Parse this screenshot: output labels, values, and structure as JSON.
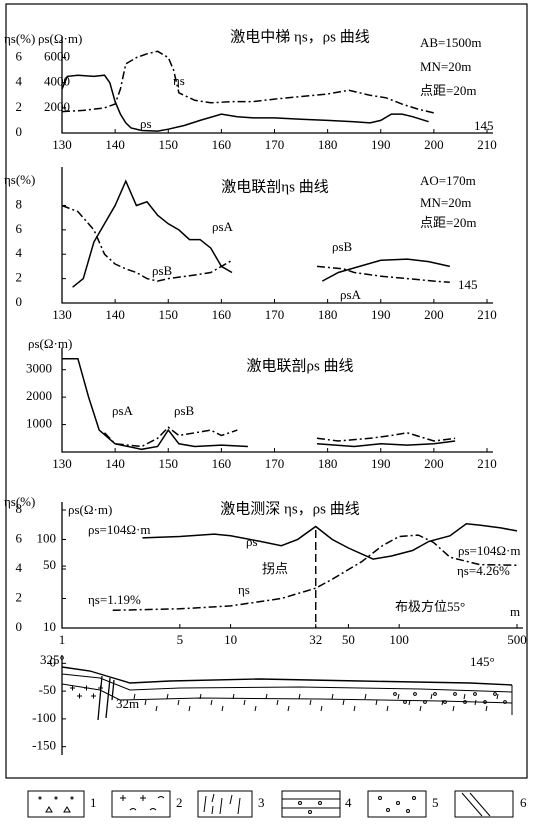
{
  "chart_data": [
    {
      "type": "line",
      "title": "激电中梯 ηs，ρs 曲线",
      "y_label": "ηs(%)",
      "y2_label": "ρs(Ω·m)",
      "xlim": [
        130,
        210
      ],
      "xticks": [
        130,
        140,
        150,
        160,
        170,
        180,
        190,
        200,
        210
      ],
      "ylim": [
        0,
        7
      ],
      "yticks": [
        0,
        2,
        4,
        6
      ],
      "y2lim": [
        0,
        7000
      ],
      "y2ticks": [
        2000,
        4000,
        6000
      ],
      "annotations": [
        "AB=1500m",
        "MN=20m",
        "点距=20m",
        "145"
      ],
      "series": [
        {
          "name": "ρs",
          "color": "#000000",
          "style": "solid",
          "axis": "y2",
          "x": [
            130,
            131,
            133,
            136,
            138,
            139,
            140,
            141,
            142,
            143,
            145,
            148,
            150,
            153,
            156,
            160,
            163,
            166,
            170,
            175,
            180,
            185,
            188,
            190,
            192,
            194,
            196,
            199
          ],
          "values": [
            3500,
            4500,
            4600,
            4500,
            4600,
            4000,
            2500,
            1500,
            800,
            400,
            200,
            150,
            300,
            600,
            1000,
            1500,
            1300,
            1200,
            1200,
            1100,
            1000,
            900,
            800,
            1000,
            1500,
            1500,
            1300,
            900
          ]
        },
        {
          "name": "ηs",
          "color": "#000000",
          "style": "dashdot",
          "x": [
            130,
            134,
            138,
            140,
            141,
            142,
            144,
            146,
            148,
            150,
            151,
            152,
            155,
            158,
            162,
            166,
            170,
            175,
            180,
            184,
            188,
            191,
            194,
            197,
            200
          ],
          "values": [
            1.7,
            1.8,
            2.0,
            2.3,
            3.5,
            5.5,
            6.0,
            6.3,
            6.5,
            6.0,
            5.0,
            3.2,
            2.6,
            2.4,
            2.5,
            2.5,
            2.7,
            2.9,
            3.1,
            3.4,
            3.0,
            2.8,
            2.3,
            1.9,
            1.6
          ]
        }
      ]
    },
    {
      "type": "line",
      "title": "激电联剖ηs 曲线",
      "y_label": "ηs(%)",
      "xlim": [
        130,
        210
      ],
      "xticks": [
        130,
        140,
        150,
        160,
        170,
        180,
        190,
        200,
        210
      ],
      "ylim": [
        0,
        10.5
      ],
      "yticks": [
        0,
        2,
        4,
        6,
        8
      ],
      "annotations": [
        "AO=170m",
        "MN=20m",
        "点距=20m",
        "145"
      ],
      "series": [
        {
          "name": "ρsA",
          "color": "#000000",
          "style": "solid",
          "x": [
            132,
            134,
            136,
            138,
            140,
            142,
            144,
            146,
            148,
            150,
            152,
            154,
            156,
            158,
            160,
            162,
            null,
            179,
            182,
            186,
            190,
            195,
            199,
            203
          ],
          "values": [
            1.3,
            2.0,
            5.0,
            6.5,
            8.0,
            10.0,
            8.0,
            8.3,
            7.2,
            6.5,
            6.0,
            5.2,
            5.2,
            4.5,
            3.0,
            2.5,
            null,
            1.8,
            2.5,
            3.0,
            3.5,
            3.6,
            3.4,
            3.0
          ]
        },
        {
          "name": "ρsB",
          "color": "#000000",
          "style": "dashdot",
          "x": [
            130,
            133,
            136,
            138,
            140,
            142,
            144,
            146,
            148,
            150,
            155,
            158,
            162,
            null,
            178,
            183,
            185,
            190,
            195,
            200,
            203
          ],
          "values": [
            8.0,
            7.5,
            6.0,
            4.0,
            3.2,
            2.8,
            2.5,
            2.0,
            1.8,
            2.0,
            2.3,
            2.5,
            3.5,
            null,
            3.0,
            2.8,
            2.5,
            2.2,
            2.0,
            1.8,
            1.7
          ]
        }
      ]
    },
    {
      "type": "line",
      "title": "激电联剖ρs 曲线",
      "y_label": "ρs(Ω·m)",
      "xlim": [
        130,
        210
      ],
      "xticks": [
        130,
        140,
        150,
        160,
        170,
        180,
        190,
        200,
        210
      ],
      "ylim": [
        0,
        3500
      ],
      "yticks": [
        1000,
        2000,
        3000
      ],
      "annotations": [],
      "series": [
        {
          "name": "ρsA",
          "color": "#000000",
          "style": "solid",
          "x": [
            130,
            133,
            135,
            137,
            140,
            145,
            148,
            150,
            152,
            155,
            160,
            165,
            null,
            178,
            185,
            190,
            195,
            200,
            204
          ],
          "values": [
            3400,
            3400,
            2000,
            800,
            300,
            100,
            200,
            800,
            300,
            200,
            250,
            200,
            null,
            300,
            200,
            300,
            250,
            300,
            400
          ]
        },
        {
          "name": "ρsB",
          "color": "#000000",
          "style": "dashdot",
          "x": [
            138,
            140,
            145,
            148,
            150,
            152,
            155,
            158,
            160,
            163,
            null,
            178,
            182,
            188,
            192,
            195,
            200,
            204
          ],
          "values": [
            700,
            300,
            200,
            500,
            900,
            600,
            700,
            800,
            600,
            800,
            null,
            500,
            400,
            500,
            600,
            700,
            400,
            500
          ]
        }
      ]
    },
    {
      "type": "line",
      "title": "激电测深 ηs，ρs 曲线",
      "y_label": "ηs(%)",
      "y2_label": "ρs(Ω·m)",
      "x_label": "m",
      "xlim": [
        1,
        500
      ],
      "xlog": true,
      "xticks": [
        1,
        5,
        10,
        32,
        50,
        100,
        500
      ],
      "ylim": [
        0,
        8
      ],
      "yticks": [
        0,
        2,
        4,
        6,
        8
      ],
      "y2lim": [
        10,
        215
      ],
      "y2log": true,
      "y2ticks": [
        10,
        50,
        100
      ],
      "annotations": [
        "ρs=104Ω·m",
        "ρs=104Ω·m",
        "ηs=1.19%",
        "ηs=4.26%",
        "拐点",
        "布极方位55°"
      ],
      "series": [
        {
          "name": "ρs",
          "color": "#000000",
          "style": "solid",
          "axis": "y2",
          "x": [
            3,
            5,
            8,
            10,
            15,
            20,
            25,
            32,
            40,
            50,
            70,
            90,
            120,
            150,
            200,
            250,
            300,
            400,
            500
          ],
          "values": [
            104,
            108,
            115,
            110,
            95,
            85,
            100,
            140,
            100,
            80,
            60,
            65,
            75,
            95,
            110,
            150,
            145,
            135,
            125
          ]
        },
        {
          "name": "ηs",
          "color": "#000000",
          "style": "dashdot",
          "x": [
            2,
            5,
            10,
            20,
            32,
            40,
            60,
            80,
            100,
            130,
            160,
            200,
            300,
            500
          ],
          "values": [
            1.2,
            1.3,
            1.5,
            2.0,
            2.7,
            3.3,
            4.5,
            5.6,
            6.2,
            6.3,
            5.8,
            4.8,
            4.3,
            4.26
          ]
        }
      ]
    },
    {
      "type": "section",
      "ylim": [
        -165,
        15
      ],
      "yticks": [
        0,
        -50,
        -100,
        -150
      ],
      "annotations": [
        "325°",
        "145°",
        "32m"
      ]
    }
  ],
  "legend": {
    "labels": [
      "1",
      "2",
      "3",
      "4",
      "5",
      "6"
    ]
  }
}
